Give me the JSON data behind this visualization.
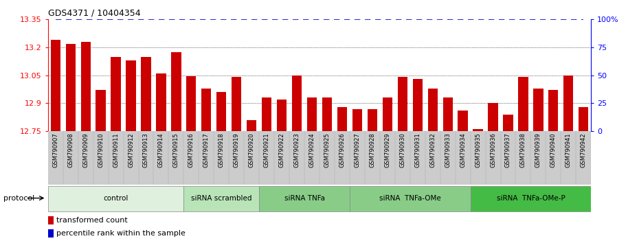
{
  "title": "GDS4371 / 10404354",
  "samples": [
    "GSM790907",
    "GSM790908",
    "GSM790909",
    "GSM790910",
    "GSM790911",
    "GSM790912",
    "GSM790913",
    "GSM790914",
    "GSM790915",
    "GSM790916",
    "GSM790917",
    "GSM790918",
    "GSM790919",
    "GSM790920",
    "GSM790921",
    "GSM790922",
    "GSM790923",
    "GSM790924",
    "GSM790925",
    "GSM790926",
    "GSM790927",
    "GSM790928",
    "GSM790929",
    "GSM790930",
    "GSM790931",
    "GSM790932",
    "GSM790933",
    "GSM790934",
    "GSM790935",
    "GSM790936",
    "GSM790937",
    "GSM790938",
    "GSM790939",
    "GSM790940",
    "GSM790941",
    "GSM790942"
  ],
  "values": [
    13.24,
    13.22,
    13.23,
    12.97,
    13.15,
    13.13,
    13.15,
    13.06,
    13.175,
    13.045,
    12.98,
    12.96,
    13.04,
    12.81,
    12.93,
    12.92,
    13.05,
    12.93,
    12.93,
    12.88,
    12.87,
    12.87,
    12.93,
    13.04,
    13.03,
    12.98,
    12.93,
    12.86,
    12.76,
    12.9,
    12.84,
    13.04,
    12.98,
    12.97,
    13.05,
    12.88
  ],
  "bar_color": "#cc0000",
  "dot_color": "#0000cc",
  "ylim_left": [
    12.75,
    13.35
  ],
  "ylim_right": [
    0,
    100
  ],
  "yticks_left": [
    12.75,
    12.9,
    13.05,
    13.2,
    13.35
  ],
  "ytick_labels_left": [
    "12.75",
    "12.9",
    "13.05",
    "13.2",
    "13.35"
  ],
  "yticks_right": [
    0,
    25,
    50,
    75,
    100
  ],
  "ytick_labels_right": [
    "0",
    "25",
    "50",
    "75",
    "100%"
  ],
  "groups": [
    {
      "label": "control",
      "start": 0,
      "end": 8,
      "color": "#dff0df"
    },
    {
      "label": "siRNA scrambled",
      "start": 9,
      "end": 13,
      "color": "#b8e0b8"
    },
    {
      "label": "siRNA TNFa",
      "start": 14,
      "end": 19,
      "color": "#88cc88"
    },
    {
      "label": "siRNA  TNFa-OMe",
      "start": 20,
      "end": 27,
      "color": "#88cc88"
    },
    {
      "label": "siRNA  TNFa-OMe-P",
      "start": 28,
      "end": 35,
      "color": "#44bb44"
    }
  ],
  "protocol_label": "protocol",
  "legend_items": [
    {
      "label": "transformed count",
      "color": "#cc0000"
    },
    {
      "label": "percentile rank within the sample",
      "color": "#0000cc"
    }
  ]
}
